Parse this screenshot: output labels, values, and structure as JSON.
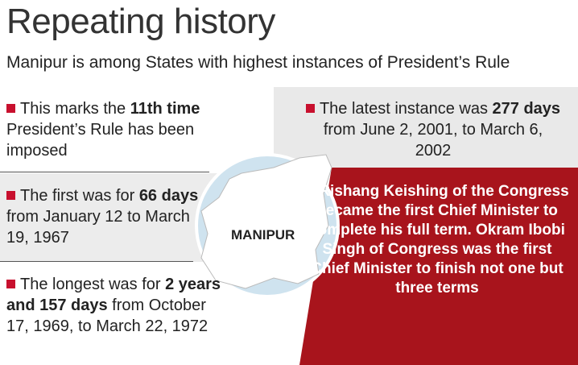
{
  "header": {
    "title": "Repeating history",
    "subtitle": "Manipur is among States with highest instances of President’s Rule"
  },
  "left_items": [
    {
      "before": "This marks the ",
      "bold": "11th time",
      "after": " President’s Rule has been imposed"
    },
    {
      "before": "The first was for ",
      "bold": "66 days",
      "after": " from January 12 to March 19, 1967"
    },
    {
      "before": "The longest was for ",
      "bold": "2 years and 157 days",
      "after": " from October 17, 1969, to March 22, 1972"
    }
  ],
  "right_item": {
    "before": "The latest instance was ",
    "bold": "277 days",
    "after": " from June 2, 2001, to March 6, 2002"
  },
  "map_label": "MANIPUR",
  "highlight": "Rishang Keishing of the Congress became the first Chief Minister to complete his full term. Okram Ibobi Singh of Congress was the first Chief Minister to finish not one but three terms"
}
